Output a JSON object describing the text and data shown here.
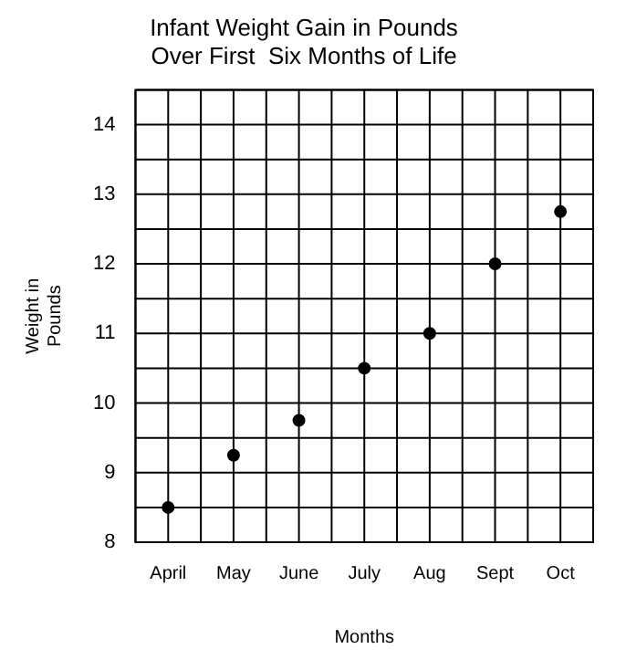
{
  "chart_data": {
    "type": "scatter",
    "title": "Infant Weight Gain in Pounds\nOver First  Six Months of Life",
    "xlabel": "Months",
    "ylabel": "Weight in\nPounds",
    "categories": [
      "April",
      "May",
      "June",
      "July",
      "Aug",
      "Sept",
      "Oct"
    ],
    "series": [
      {
        "color": "#000000",
        "values": [
          8.5,
          9.25,
          9.75,
          10.5,
          11,
          12,
          12.75
        ]
      }
    ],
    "ylim": [
      8,
      14.5
    ],
    "yticks": [
      8,
      9,
      10,
      11,
      12,
      13,
      14
    ],
    "grid": true,
    "marker": "circle",
    "legend": false
  }
}
